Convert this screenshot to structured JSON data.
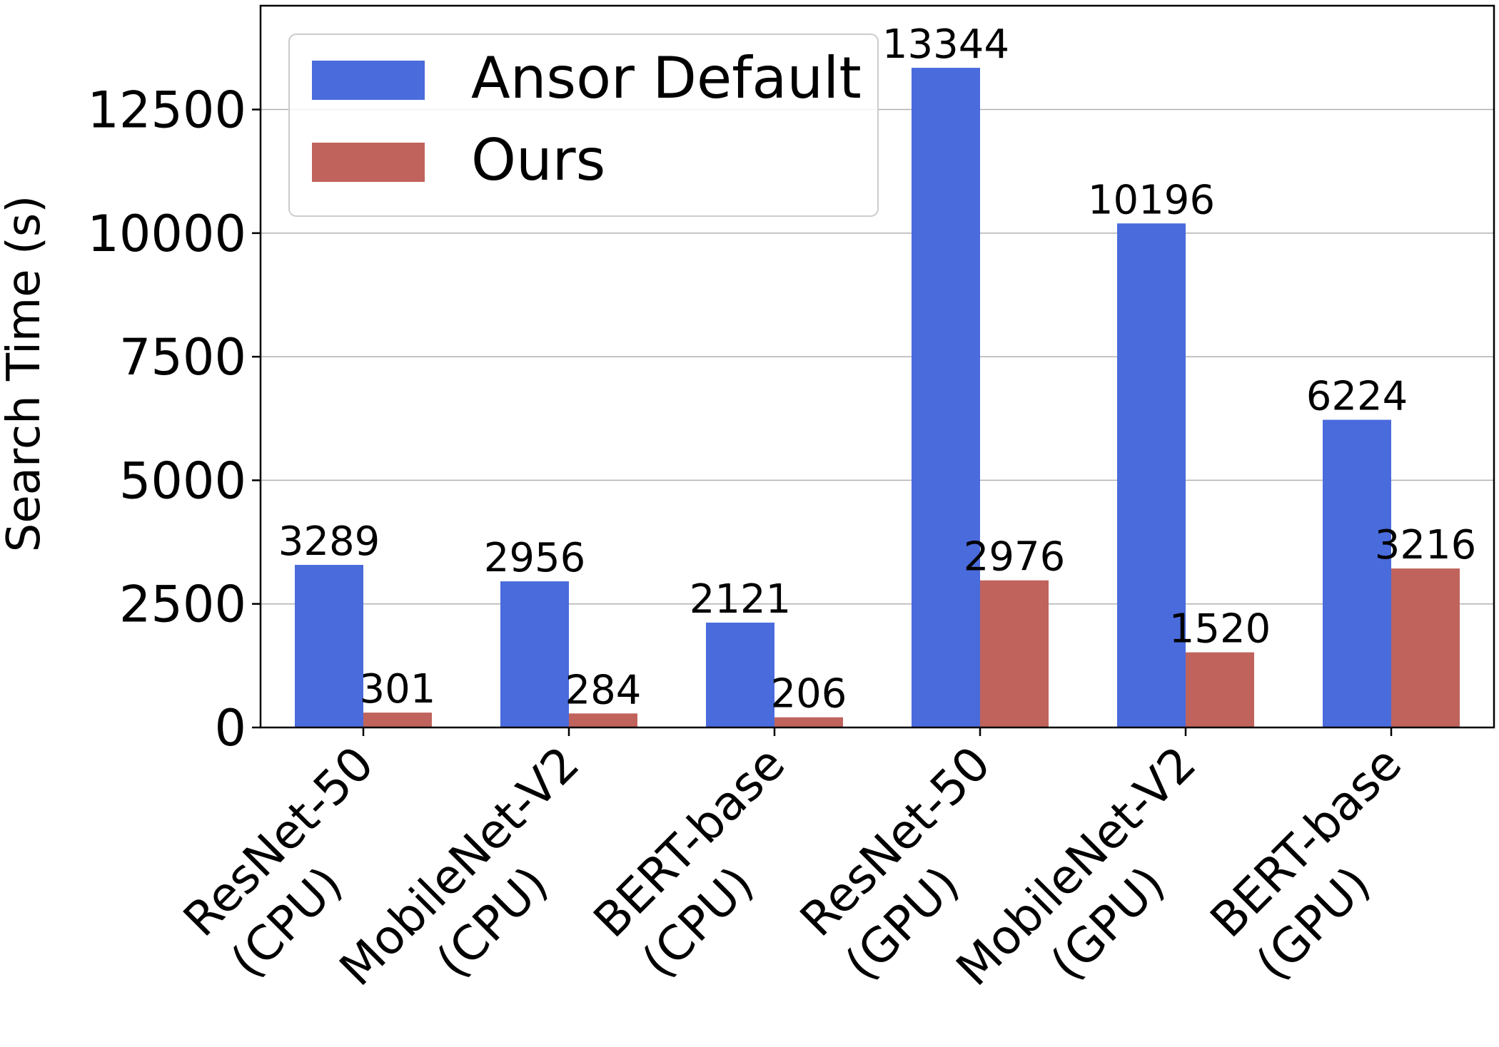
{
  "chart_data": {
    "type": "bar",
    "ylabel": "Search Time (s)",
    "xlabel": "",
    "ylim": [
      0,
      14600
    ],
    "yticks": [
      0,
      2500,
      5000,
      7500,
      10000,
      12500
    ],
    "grid": "y",
    "legend_position": "top-left",
    "categories": [
      [
        "ResNet-50",
        "(CPU)"
      ],
      [
        "MobileNet-V2",
        "(CPU)"
      ],
      [
        "BERT-base",
        "(CPU)"
      ],
      [
        "ResNet-50",
        "(GPU)"
      ],
      [
        "MobileNet-V2",
        "(GPU)"
      ],
      [
        "BERT-base",
        "(GPU)"
      ]
    ],
    "series": [
      {
        "name": "Ansor Default",
        "color": "#4a6bdc",
        "values": [
          3289,
          2956,
          2121,
          13344,
          10196,
          6224
        ]
      },
      {
        "name": "Ours",
        "color": "#c0635d",
        "values": [
          301,
          284,
          206,
          2976,
          1520,
          3216
        ]
      }
    ]
  }
}
